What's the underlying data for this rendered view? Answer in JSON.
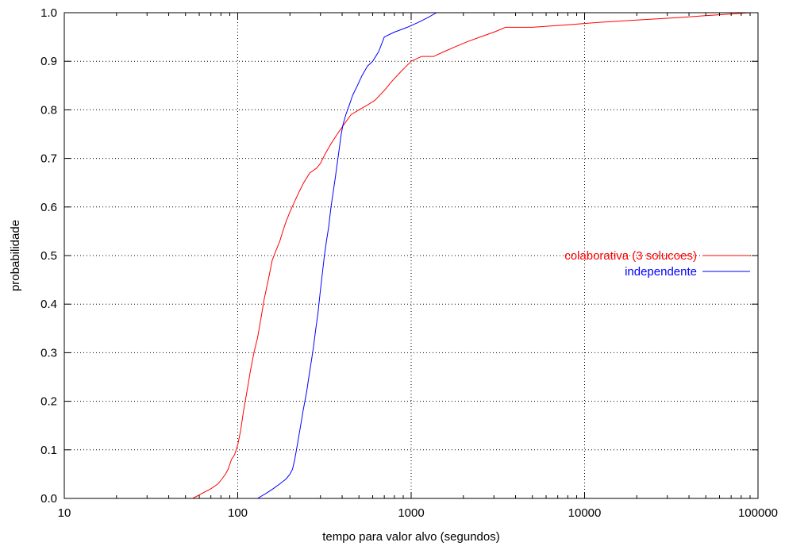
{
  "chart_data": {
    "type": "line",
    "xlabel": "tempo para valor alvo (segundos)",
    "ylabel": "probabilidade",
    "xscale": "log",
    "xlim": [
      10,
      100000
    ],
    "ylim": [
      0,
      1
    ],
    "grid": true,
    "legend_position": "right",
    "x_ticks": [
      10,
      100,
      1000,
      10000,
      100000
    ],
    "x_tick_labels": [
      "10",
      "100",
      "1000",
      "10000",
      "100000"
    ],
    "y_ticks": [
      0,
      0.1,
      0.2,
      0.3,
      0.4,
      0.5,
      0.6,
      0.7,
      0.8,
      0.9,
      1.0
    ],
    "y_tick_labels": [
      "0.0",
      "0.1",
      "0.2",
      "0.3",
      "0.4",
      "0.5",
      "0.6",
      "0.7",
      "0.8",
      "0.9",
      "1.0"
    ],
    "series": [
      {
        "name": "colaborativa (3 solucoes)",
        "color": "#ff0000",
        "x": [
          55,
          62,
          70,
          77,
          81,
          85,
          88,
          92,
          96,
          100,
          104,
          108,
          113,
          118,
          124,
          130,
          136,
          142,
          150,
          158,
          166,
          175,
          182,
          190,
          200,
          212,
          225,
          240,
          260,
          285,
          300,
          320,
          345,
          375,
          410,
          450,
          500,
          560,
          620,
          700,
          780,
          880,
          1000,
          1150,
          1350,
          1550,
          1800,
          2100,
          2500,
          3000,
          3500,
          5000,
          8000,
          12000,
          20000,
          35000,
          55000,
          90000
        ],
        "y": [
          0.0,
          0.01,
          0.02,
          0.03,
          0.04,
          0.05,
          0.06,
          0.08,
          0.09,
          0.11,
          0.14,
          0.18,
          0.22,
          0.26,
          0.3,
          0.33,
          0.37,
          0.41,
          0.45,
          0.49,
          0.51,
          0.53,
          0.55,
          0.57,
          0.59,
          0.61,
          0.63,
          0.65,
          0.67,
          0.68,
          0.69,
          0.71,
          0.73,
          0.75,
          0.77,
          0.79,
          0.8,
          0.81,
          0.82,
          0.84,
          0.86,
          0.88,
          0.9,
          0.91,
          0.91,
          0.92,
          0.93,
          0.94,
          0.95,
          0.96,
          0.97,
          0.97,
          0.975,
          0.98,
          0.985,
          0.99,
          0.995,
          1.0
        ]
      },
      {
        "name": "independente",
        "color": "#0000ff",
        "x": [
          130,
          145,
          160,
          175,
          190,
          200,
          207,
          213,
          218,
          223,
          228,
          233,
          238,
          244,
          250,
          257,
          265,
          273,
          282,
          290,
          298,
          307,
          316,
          325,
          335,
          345,
          355,
          365,
          375,
          385,
          395,
          405,
          420,
          440,
          460,
          490,
          520,
          560,
          600,
          650,
          700,
          800,
          950,
          1100,
          1250,
          1400
        ],
        "y": [
          0.0,
          0.01,
          0.02,
          0.03,
          0.04,
          0.05,
          0.06,
          0.08,
          0.1,
          0.12,
          0.14,
          0.16,
          0.18,
          0.2,
          0.22,
          0.25,
          0.28,
          0.31,
          0.35,
          0.38,
          0.42,
          0.46,
          0.5,
          0.53,
          0.56,
          0.6,
          0.63,
          0.66,
          0.69,
          0.72,
          0.75,
          0.77,
          0.79,
          0.81,
          0.83,
          0.85,
          0.87,
          0.89,
          0.9,
          0.92,
          0.95,
          0.96,
          0.97,
          0.98,
          0.99,
          1.0
        ]
      }
    ]
  }
}
